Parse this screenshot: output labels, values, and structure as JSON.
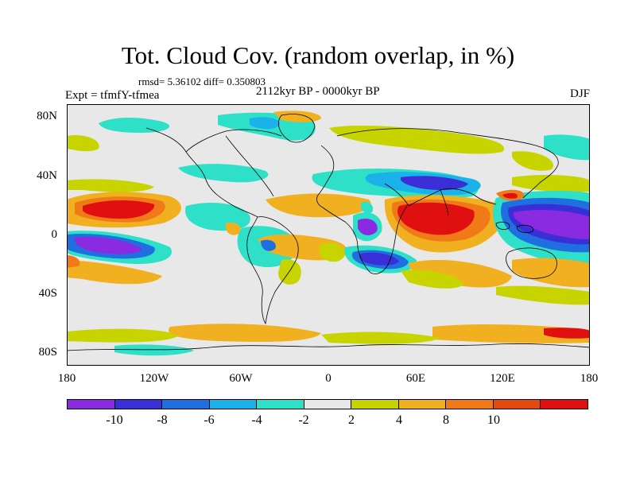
{
  "title": "Tot. Cloud Cov. (random overlap, in %)",
  "stats": "rmsd= 5.36102 diff= 0.350803",
  "experiment": "Expt = tfmfY-tfmea",
  "period": "2112kyr BP - 0000kyr BP",
  "season": "DJF",
  "lat_ticks": [
    "80N",
    "40N",
    "0",
    "40S",
    "80S"
  ],
  "lon_ticks": [
    "180",
    "120W",
    "60W",
    "0",
    "60E",
    "120E",
    "180"
  ],
  "colorbar": {
    "colors": [
      "#8a2be2",
      "#3a2fd6",
      "#1f6fe0",
      "#1ab2e8",
      "#2ee0c8",
      "#e8e8e8",
      "#c8d400",
      "#f0b020",
      "#f07a18",
      "#e24a10",
      "#e01010"
    ],
    "labels": [
      "-10",
      "-8",
      "-6",
      "-4",
      "-2",
      "2",
      "4",
      "8",
      "10"
    ]
  },
  "colors": {
    "ocean_bg": "#e8e8e8",
    "coast": "#000000"
  }
}
